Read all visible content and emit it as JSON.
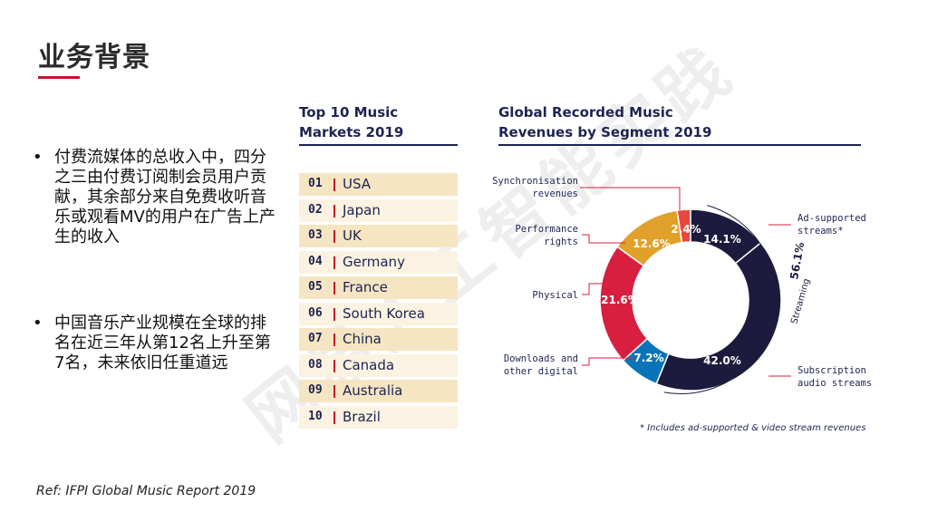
{
  "title": "业务背景",
  "bullets": [
    "付费流媒体的总收入中，四分之三由付费订阅制会员用户贡献，其余部分来自免费收听音乐或观看MV的用户在广告上产生的收入",
    "中国音乐产业规模在全球的排名在近三年从第12名上升至第7名，未来依旧任重道远"
  ],
  "bullet_symbol": "•",
  "reference": "Ref: IFPI Global Music Report 2019",
  "watermark": "网易人工智能实践",
  "chart_data": [
    {
      "type": "table",
      "title_lines": [
        "Top 10 Music",
        "Markets 2019"
      ],
      "ranks": [
        "01",
        "02",
        "03",
        "04",
        "05",
        "06",
        "07",
        "08",
        "09",
        "10"
      ],
      "countries": [
        "USA",
        "Japan",
        "UK",
        "Germany",
        "France",
        "South Korea",
        "China",
        "Canada",
        "Australia",
        "Brazil"
      ]
    },
    {
      "type": "pie",
      "title_lines": [
        "Global Recorded Music",
        "Revenues by Segment 2019"
      ],
      "segments": [
        {
          "label_lines": [
            "Synchronisation",
            "revenues"
          ],
          "value": 2.4,
          "pct_label": "2.4%",
          "color": "#e8463f"
        },
        {
          "label_lines": [
            "Ad-supported",
            "streams*"
          ],
          "value": 14.1,
          "pct_label": "14.1%",
          "color": "#1d1b3d"
        },
        {
          "label_lines": [
            "Subscription",
            "audio streams"
          ],
          "value": 42.0,
          "pct_label": "42.0%",
          "color": "#1d1b3d"
        },
        {
          "label_lines": [
            "Downloads and",
            "other digital"
          ],
          "value": 7.2,
          "pct_label": "7.2%",
          "color": "#0a74b8"
        },
        {
          "label_lines": [
            "Physical"
          ],
          "value": 21.6,
          "pct_label": "21.6%",
          "color": "#d81f3f"
        },
        {
          "label_lines": [
            "Performance",
            "rights"
          ],
          "value": 12.6,
          "pct_label": "12.6%",
          "color": "#e1a02a"
        }
      ],
      "streaming_label": "Streaming",
      "streaming_pct": "56.1%",
      "footnote": "* Includes ad-supported & video stream revenues"
    }
  ]
}
